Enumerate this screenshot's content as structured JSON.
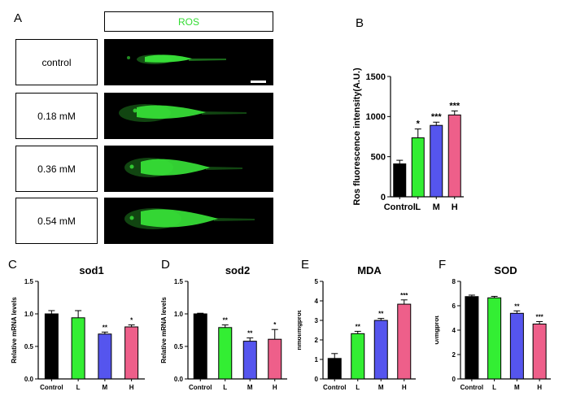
{
  "panel_letters": [
    "A",
    "B",
    "C",
    "D",
    "E",
    "F"
  ],
  "panel_a": {
    "header": "ROS",
    "conditions": [
      "control",
      "0.18 mM",
      "0.36 mM",
      "0.54 mM"
    ],
    "header_color": "#33dd33",
    "fish_color": "#39e639",
    "image_background": "#000000"
  },
  "colors": {
    "control": "#000000",
    "L": "#33ee33",
    "M": "#5555ee",
    "H": "#ee5f8a"
  },
  "chart_data": [
    {
      "id": "B",
      "type": "bar",
      "title": "",
      "ylabel": "Ros fluorescence intensity(A.U.)",
      "xlabel": "",
      "categories": [
        "Control",
        "L",
        "M",
        "H"
      ],
      "values": [
        410,
        735,
        890,
        1020
      ],
      "errors": [
        45,
        110,
        40,
        50
      ],
      "significance": [
        "",
        "*",
        "***",
        "***"
      ],
      "ylim": [
        0,
        1500
      ],
      "yticks": [
        0,
        500,
        1000,
        1500
      ],
      "ytick_labels": [
        "0",
        "500",
        "1000",
        "1500"
      ]
    },
    {
      "id": "C",
      "type": "bar",
      "title": "sod1",
      "ylabel": "Relative mRNA levels",
      "xlabel": "",
      "categories": [
        "Control",
        "L",
        "M",
        "H"
      ],
      "values": [
        1.0,
        0.94,
        0.69,
        0.8
      ],
      "errors": [
        0.05,
        0.11,
        0.03,
        0.03
      ],
      "significance": [
        "",
        "",
        "**",
        "*"
      ],
      "ylim": [
        0,
        1.5
      ],
      "yticks": [
        0,
        0.5,
        1.0,
        1.5
      ],
      "ytick_labels": [
        "0.0",
        "0.5",
        "1.0",
        "1.5"
      ]
    },
    {
      "id": "D",
      "type": "bar",
      "title": "sod2",
      "ylabel": "Relative mRNA levels",
      "xlabel": "",
      "categories": [
        "Control",
        "L",
        "M",
        "H"
      ],
      "values": [
        1.0,
        0.79,
        0.58,
        0.61
      ],
      "errors": [
        0.01,
        0.04,
        0.05,
        0.15
      ],
      "significance": [
        "",
        "**",
        "**",
        "*"
      ],
      "ylim": [
        0,
        1.5
      ],
      "yticks": [
        0,
        0.5,
        1.0,
        1.5
      ],
      "ytick_labels": [
        "0.0",
        "0.5",
        "1.0",
        "1.5"
      ]
    },
    {
      "id": "E",
      "type": "bar",
      "title": "MDA",
      "ylabel": "nmol/mgprot",
      "xlabel": "",
      "categories": [
        "Control",
        "L",
        "M",
        "H"
      ],
      "values": [
        1.05,
        2.32,
        3.0,
        3.83
      ],
      "errors": [
        0.25,
        0.12,
        0.1,
        0.22
      ],
      "significance": [
        "",
        "**",
        "**",
        "***"
      ],
      "ylim": [
        0,
        5
      ],
      "yticks": [
        0,
        1,
        2,
        3,
        4,
        5
      ],
      "ytick_labels": [
        "0",
        "1",
        "2",
        "3",
        "4",
        "5"
      ]
    },
    {
      "id": "F",
      "type": "bar",
      "title": "SOD",
      "ylabel": "U/mgprot",
      "xlabel": "",
      "categories": [
        "Control",
        "L",
        "M",
        "H"
      ],
      "values": [
        6.75,
        6.65,
        5.38,
        4.5
      ],
      "errors": [
        0.12,
        0.12,
        0.2,
        0.2
      ],
      "significance": [
        "",
        "",
        "**",
        "***"
      ],
      "ylim": [
        0,
        8
      ],
      "yticks": [
        0,
        2,
        4,
        6,
        8
      ],
      "ytick_labels": [
        "0",
        "2",
        "4",
        "6",
        "8"
      ]
    }
  ]
}
